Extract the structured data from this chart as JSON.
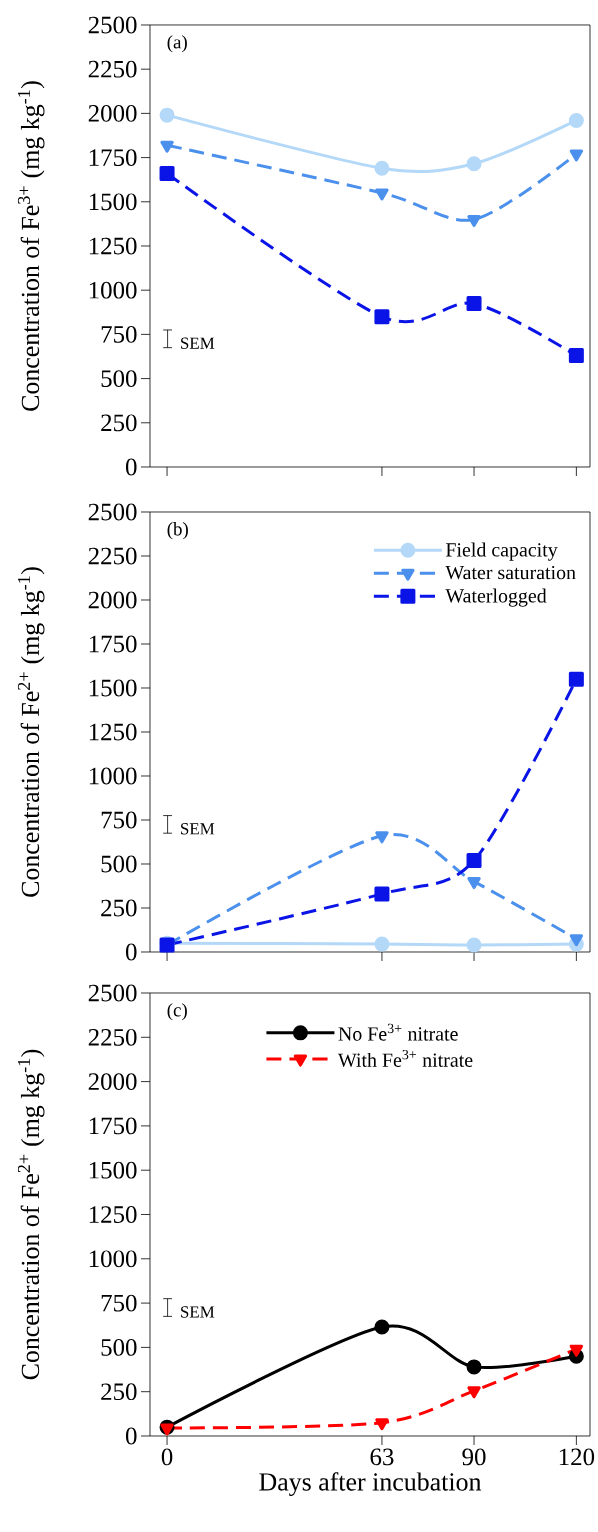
{
  "chart_data": [
    {
      "type": "line",
      "title": "(a)",
      "ylabel": "Concentration of Fe$^{3+}$ (mg kg$^{-1}$)",
      "x": [
        0,
        63,
        90,
        120
      ],
      "xlim": [
        -5,
        124
      ],
      "xticks": [
        0,
        63,
        90,
        120
      ],
      "ylim": [
        0,
        2500
      ],
      "yticks": [
        0,
        250,
        500,
        750,
        1000,
        1250,
        1500,
        1750,
        2000,
        2250,
        2500
      ],
      "tick_labels": "y",
      "annotations": [
        "SEM"
      ],
      "series": [
        {
          "color": "#b4d8f8",
          "marker": "circle",
          "line_style": "solid",
          "values": [
            1990,
            1690,
            1715,
            1960
          ]
        },
        {
          "color": "#4a90ec",
          "marker": "triangle",
          "line_style": "dashed",
          "values": [
            1820,
            1550,
            1400,
            1770
          ]
        },
        {
          "color": "#0a14e6",
          "marker": "square",
          "line_style": "dashed",
          "values": [
            1660,
            850,
            925,
            630
          ]
        }
      ]
    },
    {
      "type": "line",
      "title": "(b)",
      "ylabel": "Concentration of Fe$^{2+}$ (mg kg$^{-1}$)",
      "x": [
        0,
        63,
        90,
        120
      ],
      "xlim": [
        -5,
        124
      ],
      "xticks": [
        0,
        63,
        90,
        120
      ],
      "ylim": [
        0,
        2500
      ],
      "yticks": [
        0,
        250,
        500,
        750,
        1000,
        1250,
        1500,
        1750,
        2000,
        2250,
        2500
      ],
      "tick_labels": "y",
      "legend": "top right",
      "annotations": [
        "SEM"
      ],
      "series": [
        {
          "name": "Field capacity",
          "color": "#b4d8f8",
          "marker": "circle",
          "line_style": "solid",
          "values": [
            50,
            45,
            40,
            45
          ]
        },
        {
          "name": "Water saturation",
          "color": "#4a90ec",
          "marker": "triangle",
          "line_style": "dashed",
          "values": [
            40,
            660,
            400,
            75
          ]
        },
        {
          "name": "Waterlogged",
          "color": "#0a14e6",
          "marker": "square",
          "line_style": "dashed",
          "values": [
            40,
            330,
            520,
            1550
          ]
        }
      ]
    },
    {
      "type": "line",
      "title": "(c)",
      "ylabel": "Concentration of Fe$^{2+}$ (mg kg$^{-1}$)",
      "xlabel": "Days after incubation",
      "x": [
        0,
        63,
        90,
        120
      ],
      "xlim": [
        -5,
        124
      ],
      "xticks": [
        0,
        63,
        90,
        120
      ],
      "ylim": [
        0,
        2500
      ],
      "yticks": [
        0,
        250,
        500,
        750,
        1000,
        1250,
        1500,
        1750,
        2000,
        2250,
        2500
      ],
      "legend": "top",
      "annotations": [
        "SEM"
      ],
      "series": [
        {
          "name": "No Fe$^{3+}$ nitrate",
          "color": "#000000",
          "marker": "circle",
          "line_style": "solid",
          "values": [
            50,
            615,
            390,
            450
          ]
        },
        {
          "name": "With Fe$^{3+}$ nitrate",
          "color": "#ff0000",
          "marker": "triangle",
          "line_style": "dashed",
          "values": [
            45,
            75,
            255,
            490
          ]
        }
      ]
    }
  ]
}
